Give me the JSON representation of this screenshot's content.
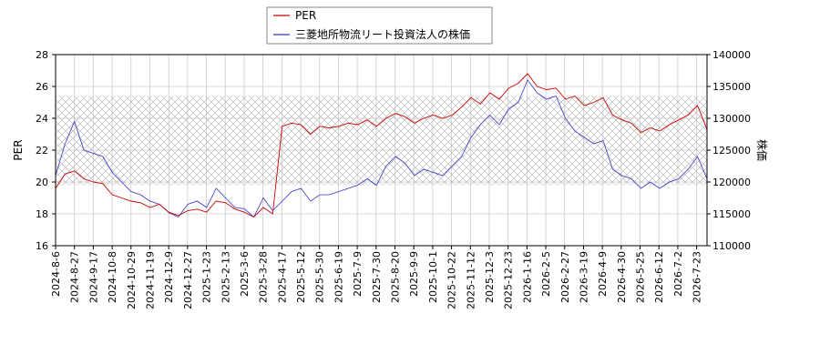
{
  "chart_data": {
    "type": "line",
    "ylabel_left": "PER",
    "ylabel_right": "株価",
    "y_left_range": [
      16,
      28
    ],
    "y_left_ticks": [
      "16",
      "18",
      "20",
      "22",
      "24",
      "26",
      "28"
    ],
    "y_right_range": [
      110000,
      140000
    ],
    "y_right_ticks": [
      "110000",
      "115000",
      "120000",
      "125000",
      "130000",
      "135000",
      "140000"
    ],
    "x_tick_labels": [
      "2024-8-6",
      "2024-8-27",
      "2024-9-17",
      "2024-10-8",
      "2024-10-29",
      "2024-11-19",
      "2024-12-9",
      "2024-12-27",
      "2025-1-23",
      "2025-2-13",
      "2025-3-6",
      "2025-3-28",
      "2025-4-17",
      "2025-5-12",
      "2025-5-30",
      "2025-6-19",
      "2025-7-9",
      "2025-7-30",
      "2025-8-20",
      "2025-9-9",
      "2025-10-1",
      "2025-10-22",
      "2025-11-12",
      "2025-12-3",
      "2025-12-23",
      "2026-1-16",
      "2026-2-5",
      "2026-2-27",
      "2026-3-19",
      "2026-4-9",
      "2026-4-30",
      "2026-5-25",
      "2026-6-12",
      "2026-7-2",
      "2026-7-23"
    ],
    "grid": true,
    "legend_position": "top-center",
    "band_right_axis": [
      119500,
      133500
    ],
    "series": [
      {
        "name": "PER",
        "axis": "left",
        "color": "#cc0000",
        "values": [
          19.6,
          20.5,
          20.7,
          20.2,
          20.0,
          19.9,
          19.2,
          19.0,
          18.8,
          18.7,
          18.4,
          18.6,
          18.1,
          17.9,
          18.2,
          18.3,
          18.1,
          18.8,
          18.7,
          18.3,
          18.1,
          17.8,
          18.4,
          18.0,
          23.5,
          23.7,
          23.6,
          23.0,
          23.5,
          23.4,
          23.5,
          23.7,
          23.6,
          23.9,
          23.5,
          24.0,
          24.3,
          24.1,
          23.7,
          24.0,
          24.2,
          24.0,
          24.2,
          24.7,
          25.3,
          24.9,
          25.6,
          25.2,
          25.9,
          26.2,
          26.8,
          26.0,
          25.8,
          25.9,
          25.2,
          25.4,
          24.8,
          25.0,
          25.3,
          24.2,
          23.9,
          23.7,
          23.1,
          23.4,
          23.2,
          23.6,
          23.9,
          24.2,
          24.8,
          23.3
        ]
      },
      {
        "name": "三菱地所物流リート投資法人の株価",
        "axis": "right",
        "color": "#3333cc",
        "values": [
          121000,
          126000,
          129500,
          125000,
          124500,
          124000,
          121500,
          120000,
          118500,
          118000,
          117000,
          116500,
          115200,
          114500,
          116500,
          117000,
          116000,
          119000,
          117500,
          116000,
          115800,
          114500,
          117500,
          115500,
          117000,
          118500,
          119000,
          117000,
          118000,
          118000,
          118500,
          119000,
          119500,
          120500,
          119500,
          122500,
          124000,
          123000,
          121000,
          122000,
          121500,
          121000,
          122500,
          124000,
          127000,
          129000,
          130500,
          129000,
          131500,
          132500,
          136000,
          134000,
          133000,
          133500,
          130000,
          128000,
          127000,
          126000,
          126500,
          122000,
          121000,
          120500,
          119000,
          120000,
          119000,
          120000,
          120500,
          122000,
          124000,
          120500
        ]
      }
    ]
  }
}
